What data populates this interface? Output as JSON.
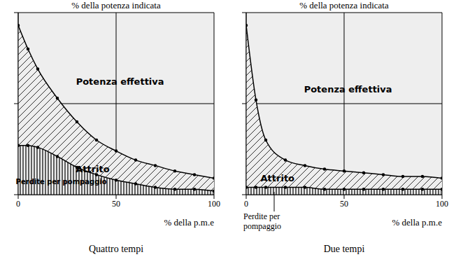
{
  "chart_data": [
    {
      "type": "area",
      "title": "% della potenza indicata",
      "subtitle": "Quattro tempi",
      "x_label": "% della p.m.e",
      "x": [
        0,
        5,
        10,
        20,
        30,
        40,
        50,
        60,
        70,
        80,
        90,
        100
      ],
      "series": [
        {
          "color": "#000000",
          "values": [
            93,
            80,
            69,
            53,
            40,
            30,
            24,
            19,
            16,
            13,
            11,
            9
          ]
        },
        {
          "color": "#000000",
          "values": [
            27,
            27,
            26,
            21,
            15,
            11,
            8,
            6,
            4,
            3,
            3,
            2
          ]
        }
      ],
      "xlim": [
        0,
        100
      ],
      "ylim": [
        0,
        100
      ],
      "xticks": [
        0,
        50,
        100
      ],
      "yticks": [
        0,
        50,
        100
      ],
      "grid": true,
      "tick_labels": "x",
      "annotations": [
        "Potenza effettiva",
        "Attrito",
        "Perdite per pompaggio"
      ]
    },
    {
      "type": "area",
      "title": "% della potenza indicata",
      "subtitle": "Due tempi",
      "x_label": "% della p.m.e",
      "x": [
        0,
        5,
        10,
        20,
        30,
        40,
        50,
        60,
        70,
        80,
        90,
        100
      ],
      "series": [
        {
          "color": "#000000",
          "values": [
            93,
            52,
            30,
            19,
            16,
            14,
            13,
            12,
            11,
            10,
            10,
            9
          ]
        },
        {
          "color": "#000000",
          "values": [
            4,
            4,
            4,
            4,
            4,
            3,
            3,
            3,
            3,
            3,
            3,
            3
          ]
        }
      ],
      "xlim": [
        0,
        100
      ],
      "ylim": [
        0,
        100
      ],
      "xticks": [
        0,
        50,
        100
      ],
      "yticks": [
        0,
        50,
        100
      ],
      "grid": true,
      "tick_labels": "x",
      "annotations": [
        "Potenza effettiva",
        "Attrito",
        "Perdite per pompaggio"
      ]
    }
  ]
}
